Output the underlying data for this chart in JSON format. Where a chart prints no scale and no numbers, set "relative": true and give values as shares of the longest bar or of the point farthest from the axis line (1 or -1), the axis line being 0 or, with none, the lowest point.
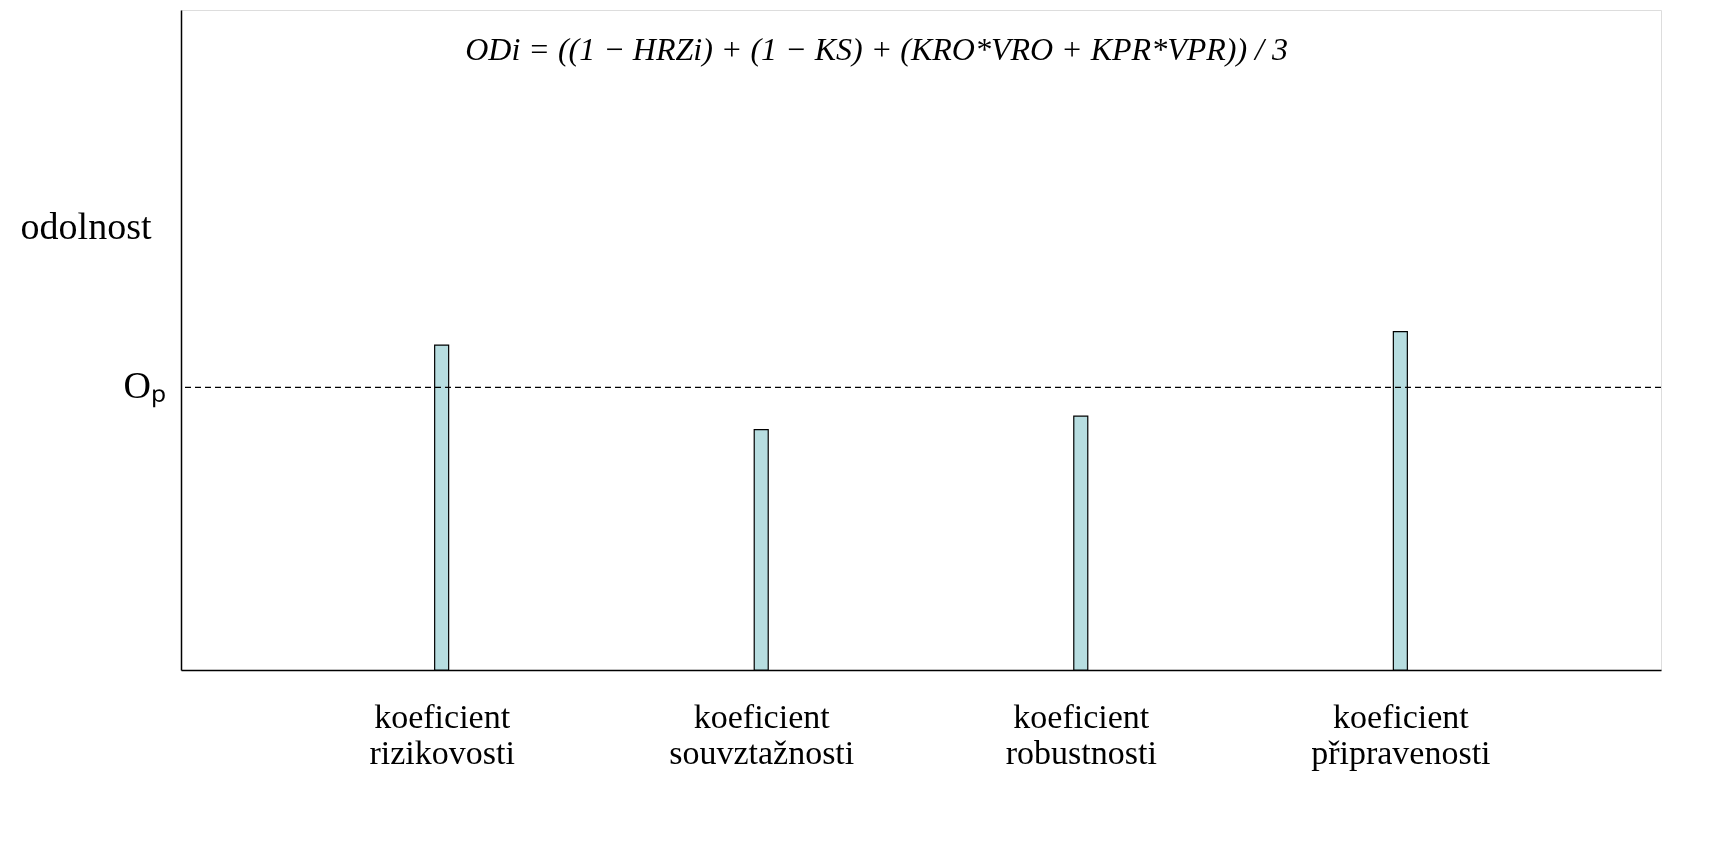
{
  "chart_data": {
    "type": "bar",
    "relative": true,
    "ylabel": "odolnost",
    "categories": [
      "koeficient rizikovosti",
      "koeficient souvztažnosti",
      "koeficient robustnosti",
      "koeficient připravenosti"
    ],
    "values": [
      0.96,
      0.71,
      0.75,
      1.0
    ],
    "color": "#b7dde0",
    "ref_lines": [
      {
        "axis": "y",
        "value": 0.835,
        "label": "Oₚ",
        "line_style": "dashed",
        "color": "#000000"
      }
    ],
    "annotations": [
      "ODi = ((1 − HRZi) + (1 − KS) + (KRO*VRO + KPR*VPR)) / 3"
    ],
    "grid": false
  }
}
